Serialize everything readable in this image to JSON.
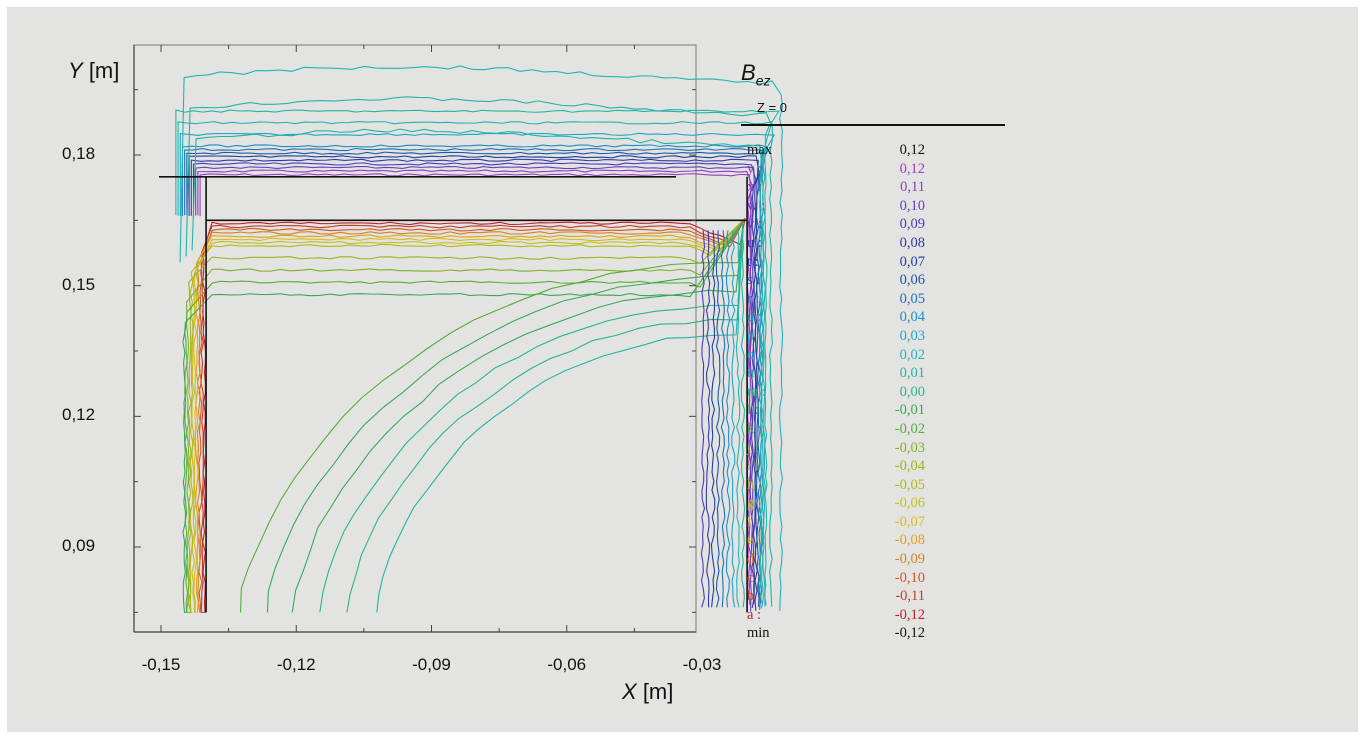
{
  "chart_data": {
    "type": "contour",
    "title": "Bez",
    "title_main": "B",
    "title_sub": "ez",
    "subtitle": "Z = 0",
    "xlabel_var": "X",
    "xlabel_unit": "[m]",
    "ylabel_var": "Y",
    "ylabel_unit": "[m]",
    "x_ticks": [
      "-0,15",
      "-0,12",
      "-0,09",
      "-0,06",
      "-0,03"
    ],
    "y_ticks": [
      "0,18",
      "0,15",
      "0,12",
      "0,09"
    ],
    "xlim": [
      -0.15,
      -0.005
    ],
    "ylim": [
      0.075,
      0.18
    ],
    "geometry_outline": {
      "horizontal_bar": {
        "x": [
          -0.14,
          -0.02
        ],
        "y_top": 0.175,
        "y_bottom": 0.165
      },
      "vertical_bar": {
        "x_left": -0.14,
        "x_right": -0.02,
        "y": [
          0.075,
          0.175
        ]
      }
    },
    "legend": [
      {
        "key": "max",
        "value": "0,12",
        "color": "#111111"
      },
      {
        "key": "y :",
        "value": "0,12",
        "color": "#9a3fc0"
      },
      {
        "key": "x :",
        "value": "0,11",
        "color": "#8a3ec2"
      },
      {
        "key": "w :",
        "value": "0,10",
        "color": "#6b3cc0"
      },
      {
        "key": "v :",
        "value": "0,09",
        "color": "#4e3ab8"
      },
      {
        "key": "u :",
        "value": "0,08",
        "color": "#333aa8"
      },
      {
        "key": "t :",
        "value": "0,07",
        "color": "#1f3f9e"
      },
      {
        "key": "s :",
        "value": "0,06",
        "color": "#1f55a8"
      },
      {
        "key": "r :",
        "value": "0,05",
        "color": "#1f6fb8"
      },
      {
        "key": "q :",
        "value": "0,04",
        "color": "#1f8cc4"
      },
      {
        "key": "p :",
        "value": "0,03",
        "color": "#1fa6c8"
      },
      {
        "key": "o :",
        "value": "0,02",
        "color": "#22b4b8"
      },
      {
        "key": "n :",
        "value": "0,01",
        "color": "#22b4a4"
      },
      {
        "key": "m :",
        "value": "0,00",
        "color": "#2ab48c"
      },
      {
        "key": "l :",
        "value": "-0,01",
        "color": "#3aa858"
      },
      {
        "key": "k :",
        "value": "-0,02",
        "color": "#58ac3a"
      },
      {
        "key": "j :",
        "value": "-0,03",
        "color": "#80b02a"
      },
      {
        "key": "i :",
        "value": "-0,04",
        "color": "#9ab420"
      },
      {
        "key": "h :",
        "value": "-0,05",
        "color": "#b4b81c"
      },
      {
        "key": "g :",
        "value": "-0,06",
        "color": "#c8bc1a"
      },
      {
        "key": "f :",
        "value": "-0,07",
        "color": "#d8bc18"
      },
      {
        "key": "e :",
        "value": "-0,08",
        "color": "#e0a21a"
      },
      {
        "key": "d :",
        "value": "-0,09",
        "color": "#d8801c"
      },
      {
        "key": "c :",
        "value": "-0,10",
        "color": "#cf5820"
      },
      {
        "key": "b :",
        "value": "-0,11",
        "color": "#c83a28"
      },
      {
        "key": "a :",
        "value": "-0,12",
        "color": "#c01e2c"
      },
      {
        "key": "min",
        "value": "-0,12",
        "color": "#111111"
      }
    ]
  }
}
